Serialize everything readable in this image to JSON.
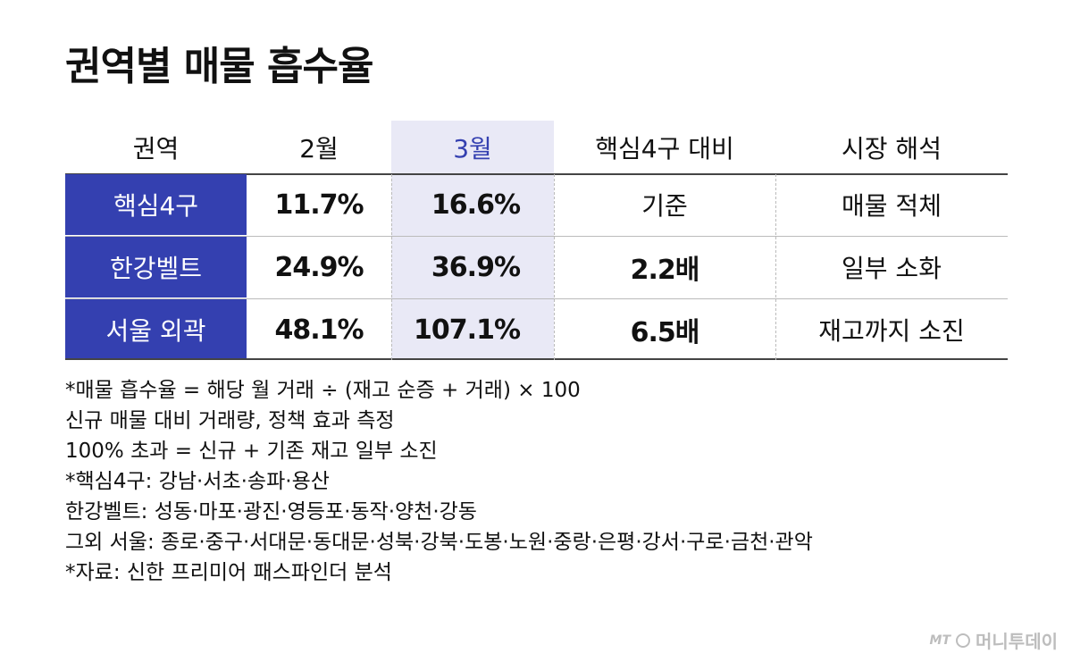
{
  "title": "권역별 매물 흡수율",
  "chart_data": {
    "type": "table",
    "columns": [
      "권역",
      "2월",
      "3월",
      "핵심4구 대비",
      "시장 해석"
    ],
    "rows": [
      [
        "핵심4구",
        "11.7%",
        "16.6%",
        "기준",
        "매물 적체"
      ],
      [
        "한강벨트",
        "24.9%",
        "36.9%",
        "2.2배",
        "일부 소화"
      ],
      [
        "서울 외곽",
        "48.1%",
        "107.1%",
        "6.5배",
        "재고까지 소진"
      ]
    ],
    "highlight_column": "3월",
    "colors": {
      "label_bg": "#3440b0",
      "highlight_bg": "#e9e9f6",
      "highlight_text": "#3440b0"
    }
  },
  "notes": [
    "*매물 흡수율 = 해당 월 거래 ÷ (재고 순증 + 거래) × 100",
    "신규 매물 대비 거래량, 정책 효과 측정",
    "100% 초과 = 신규 + 기존 재고 일부 소진",
    "*핵심4구: 강남·서초·송파·용산",
    "한강벨트: 성동·마포·광진·영등포·동작·양천·강동",
    "그외 서울: 종로·중구·서대문·동대문·성북·강북·도봉·노원·중랑·은평·강서·구로·금천·관악",
    "*자료: 신한 프리미어 패스파인더 분석"
  ],
  "logo": {
    "mt": "MT",
    "name": "머니투데이"
  }
}
